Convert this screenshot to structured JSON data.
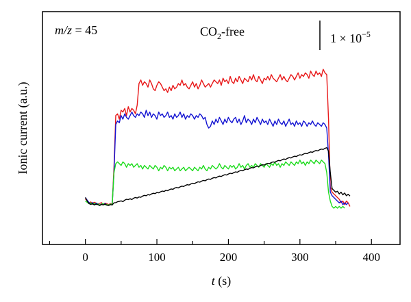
{
  "chart_data": {
    "type": "line",
    "annotation_mz": {
      "var": "m/z",
      "eq": " = 45"
    },
    "annotation_condition": {
      "pre": "CO",
      "sub": "2",
      "post": "-free"
    },
    "scale_bar_label": {
      "text": "1 × 10",
      "sup": "−5"
    },
    "xlabel": {
      "var": "t",
      "unit": " (s)"
    },
    "ylabel": "Ionic current (a.u.)",
    "xlim": [
      -60,
      440
    ],
    "ylim": [
      0,
      1
    ],
    "x_ticks": [
      0,
      100,
      200,
      300,
      400
    ],
    "x_tick_labels": [
      "0",
      "100",
      "200",
      "300",
      "400"
    ],
    "y_ticks_visible": false,
    "grid": false,
    "series": [
      {
        "color": "#e8191a",
        "x_start": 0,
        "x_step": 2.5,
        "values": [
          0.152,
          0.141,
          0.13,
          0.135,
          0.128,
          0.133,
          0.129,
          0.124,
          0.127,
          0.131,
          0.122,
          0.128,
          0.125,
          0.12,
          0.126,
          0.123,
          0.33,
          0.62,
          0.63,
          0.6,
          0.65,
          0.64,
          0.66,
          0.62,
          0.67,
          0.64,
          0.66,
          0.65,
          0.63,
          0.68,
          0.8,
          0.82,
          0.79,
          0.81,
          0.8,
          0.78,
          0.82,
          0.8,
          0.77,
          0.76,
          0.79,
          0.81,
          0.8,
          0.78,
          0.76,
          0.77,
          0.75,
          0.78,
          0.76,
          0.79,
          0.77,
          0.78,
          0.8,
          0.79,
          0.82,
          0.79,
          0.8,
          0.78,
          0.77,
          0.79,
          0.81,
          0.78,
          0.8,
          0.77,
          0.79,
          0.82,
          0.8,
          0.78,
          0.79,
          0.8,
          0.78,
          0.8,
          0.82,
          0.81,
          0.8,
          0.82,
          0.79,
          0.83,
          0.81,
          0.82,
          0.8,
          0.84,
          0.81,
          0.8,
          0.83,
          0.81,
          0.84,
          0.82,
          0.8,
          0.83,
          0.82,
          0.81,
          0.84,
          0.82,
          0.85,
          0.82,
          0.81,
          0.84,
          0.82,
          0.8,
          0.83,
          0.82,
          0.84,
          0.82,
          0.85,
          0.83,
          0.82,
          0.81,
          0.83,
          0.85,
          0.82,
          0.84,
          0.82,
          0.81,
          0.83,
          0.85,
          0.84,
          0.82,
          0.84,
          0.86,
          0.83,
          0.85,
          0.84,
          0.86,
          0.85,
          0.83,
          0.87,
          0.85,
          0.84,
          0.87,
          0.85,
          0.86,
          0.84,
          0.88,
          0.86,
          0.85,
          0.6,
          0.22,
          0.19,
          0.18,
          0.17,
          0.16,
          0.15,
          0.13,
          0.14,
          0.12,
          0.14,
          0.13,
          0.11
        ]
      },
      {
        "color": "#1414d2",
        "x_start": 0,
        "x_step": 2.5,
        "values": [
          0.16,
          0.145,
          0.132,
          0.126,
          0.131,
          0.122,
          0.128,
          0.125,
          0.118,
          0.124,
          0.121,
          0.126,
          0.119,
          0.117,
          0.123,
          0.12,
          0.3,
          0.57,
          0.59,
          0.58,
          0.62,
          0.6,
          0.63,
          0.61,
          0.6,
          0.62,
          0.64,
          0.62,
          0.61,
          0.63,
          0.62,
          0.64,
          0.63,
          0.61,
          0.65,
          0.62,
          0.64,
          0.61,
          0.63,
          0.62,
          0.6,
          0.64,
          0.62,
          0.63,
          0.61,
          0.62,
          0.64,
          0.61,
          0.62,
          0.6,
          0.63,
          0.61,
          0.62,
          0.64,
          0.61,
          0.63,
          0.6,
          0.62,
          0.61,
          0.63,
          0.62,
          0.6,
          0.62,
          0.61,
          0.63,
          0.62,
          0.6,
          0.61,
          0.57,
          0.55,
          0.56,
          0.59,
          0.57,
          0.6,
          0.58,
          0.61,
          0.59,
          0.57,
          0.6,
          0.58,
          0.61,
          0.59,
          0.58,
          0.6,
          0.61,
          0.58,
          0.6,
          0.57,
          0.59,
          0.62,
          0.58,
          0.6,
          0.59,
          0.57,
          0.6,
          0.58,
          0.61,
          0.59,
          0.57,
          0.6,
          0.58,
          0.59,
          0.57,
          0.6,
          0.58,
          0.56,
          0.59,
          0.57,
          0.6,
          0.58,
          0.57,
          0.59,
          0.56,
          0.58,
          0.6,
          0.57,
          0.58,
          0.56,
          0.59,
          0.57,
          0.58,
          0.56,
          0.59,
          0.58,
          0.56,
          0.58,
          0.57,
          0.59,
          0.57,
          0.56,
          0.58,
          0.57,
          0.56,
          0.58,
          0.57,
          0.55,
          0.4,
          0.19,
          0.17,
          0.16,
          0.15,
          0.14,
          0.13,
          0.14,
          0.12,
          0.13,
          0.12,
          0.13
        ]
      },
      {
        "color": "#1fdc1f",
        "x_start": 0,
        "x_step": 2.5,
        "values": [
          0.14,
          0.133,
          0.125,
          0.13,
          0.122,
          0.127,
          0.12,
          0.124,
          0.118,
          0.122,
          0.126,
          0.119,
          0.121,
          0.117,
          0.123,
          0.118,
          0.3,
          0.35,
          0.36,
          0.35,
          0.34,
          0.36,
          0.35,
          0.33,
          0.35,
          0.34,
          0.35,
          0.33,
          0.34,
          0.35,
          0.33,
          0.34,
          0.32,
          0.34,
          0.33,
          0.32,
          0.34,
          0.33,
          0.32,
          0.34,
          0.33,
          0.31,
          0.33,
          0.32,
          0.34,
          0.33,
          0.31,
          0.33,
          0.32,
          0.33,
          0.31,
          0.32,
          0.33,
          0.31,
          0.32,
          0.33,
          0.31,
          0.32,
          0.33,
          0.32,
          0.31,
          0.33,
          0.32,
          0.31,
          0.33,
          0.32,
          0.34,
          0.32,
          0.31,
          0.33,
          0.32,
          0.34,
          0.33,
          0.32,
          0.33,
          0.35,
          0.33,
          0.32,
          0.34,
          0.33,
          0.32,
          0.34,
          0.33,
          0.34,
          0.32,
          0.33,
          0.35,
          0.33,
          0.34,
          0.32,
          0.34,
          0.35,
          0.33,
          0.34,
          0.33,
          0.35,
          0.34,
          0.33,
          0.35,
          0.34,
          0.33,
          0.35,
          0.34,
          0.33,
          0.35,
          0.34,
          0.36,
          0.34,
          0.35,
          0.33,
          0.35,
          0.34,
          0.36,
          0.35,
          0.34,
          0.36,
          0.35,
          0.34,
          0.36,
          0.35,
          0.37,
          0.35,
          0.36,
          0.34,
          0.36,
          0.35,
          0.37,
          0.36,
          0.35,
          0.37,
          0.36,
          0.35,
          0.37,
          0.36,
          0.35,
          0.3,
          0.19,
          0.14,
          0.11,
          0.1,
          0.11,
          0.1,
          0.11,
          0.1,
          0.11,
          0.1
        ]
      },
      {
        "color": "#000000",
        "x_start": 0,
        "x_step": 2.5,
        "values": [
          0.16,
          0.14,
          0.126,
          0.121,
          0.125,
          0.118,
          0.123,
          0.12,
          0.115,
          0.121,
          0.118,
          0.123,
          0.117,
          0.115,
          0.12,
          0.118,
          0.13,
          0.131,
          0.136,
          0.138,
          0.141,
          0.137,
          0.145,
          0.15,
          0.148,
          0.153,
          0.149,
          0.156,
          0.16,
          0.157,
          0.163,
          0.161,
          0.168,
          0.172,
          0.17,
          0.176,
          0.174,
          0.18,
          0.184,
          0.182,
          0.188,
          0.186,
          0.192,
          0.196,
          0.194,
          0.2,
          0.198,
          0.204,
          0.208,
          0.206,
          0.213,
          0.216,
          0.214,
          0.22,
          0.224,
          0.222,
          0.228,
          0.232,
          0.23,
          0.236,
          0.24,
          0.238,
          0.244,
          0.248,
          0.246,
          0.252,
          0.256,
          0.254,
          0.26,
          0.264,
          0.262,
          0.268,
          0.272,
          0.27,
          0.276,
          0.28,
          0.278,
          0.284,
          0.288,
          0.286,
          0.292,
          0.296,
          0.294,
          0.3,
          0.304,
          0.302,
          0.308,
          0.312,
          0.31,
          0.316,
          0.32,
          0.318,
          0.324,
          0.328,
          0.326,
          0.332,
          0.336,
          0.334,
          0.34,
          0.344,
          0.342,
          0.348,
          0.352,
          0.35,
          0.356,
          0.36,
          0.358,
          0.364,
          0.368,
          0.366,
          0.372,
          0.376,
          0.374,
          0.38,
          0.384,
          0.382,
          0.388,
          0.392,
          0.39,
          0.396,
          0.4,
          0.398,
          0.404,
          0.408,
          0.406,
          0.412,
          0.416,
          0.414,
          0.42,
          0.424,
          0.422,
          0.428,
          0.432,
          0.43,
          0.436,
          0.44,
          0.42,
          0.3,
          0.21,
          0.2,
          0.19,
          0.195,
          0.18,
          0.19,
          0.175,
          0.185,
          0.17,
          0.178,
          0.168
        ]
      }
    ]
  }
}
